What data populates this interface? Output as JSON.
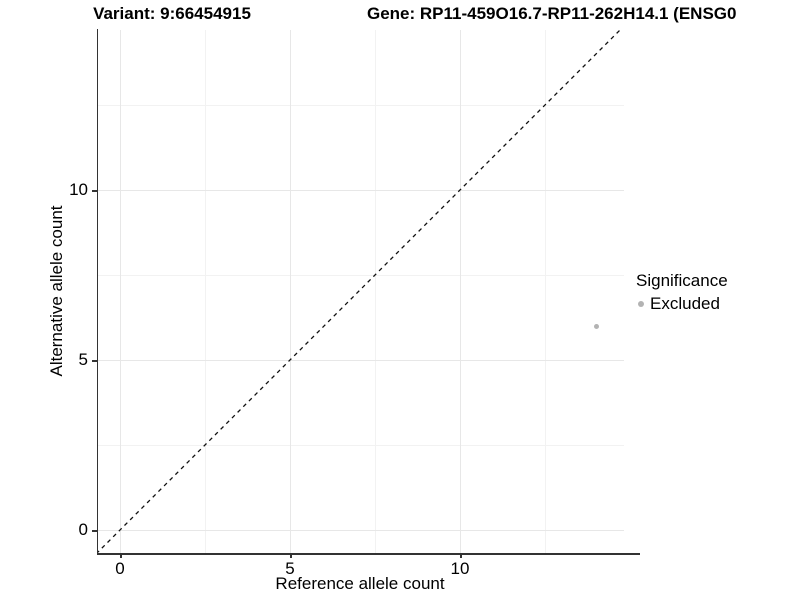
{
  "header": {
    "variant_title": "Variant: 9:66454915",
    "gene_title": "Gene: RP11-459O16.7-RP11-262H14.1 (ENSG0"
  },
  "axes": {
    "x_label": "Reference allele count",
    "y_label": "Alternative allele count"
  },
  "legend": {
    "title": "Significance",
    "items": [
      {
        "label": "Excluded",
        "color": "#b3b3b3"
      }
    ]
  },
  "colors": {
    "axis_line": "#333333",
    "grid_major": "#e7e7e7",
    "grid_minor": "#f2f2f2",
    "reference_line": "#111111",
    "text": "#000000",
    "background": "#ffffff"
  },
  "chart_data": {
    "type": "scatter",
    "title_left": "Variant: 9:66454915",
    "title_right": "Gene: RP11-459O16.7-RP11-262H14.1 (ENSG0",
    "xlabel": "Reference allele count",
    "ylabel": "Alternative allele count",
    "xlim": [
      -0.7,
      14.8
    ],
    "ylim": [
      -0.7,
      14.8
    ],
    "x_ticks": [
      0,
      5,
      10
    ],
    "y_ticks": [
      0,
      5,
      10
    ],
    "x_minor_ticks": [
      2.5,
      7.5,
      12.5
    ],
    "y_minor_ticks": [
      2.5,
      7.5,
      12.5
    ],
    "grid": "major+minor",
    "legend_position": "right",
    "legend_title": "Significance",
    "series": [
      {
        "name": "Excluded",
        "color": "#b3b3b3",
        "point_size": 5,
        "points": [
          {
            "x": 14,
            "y": 6
          }
        ]
      }
    ],
    "reference_line": {
      "type": "abline",
      "slope": 1,
      "intercept": 0,
      "style": "dashed"
    }
  }
}
